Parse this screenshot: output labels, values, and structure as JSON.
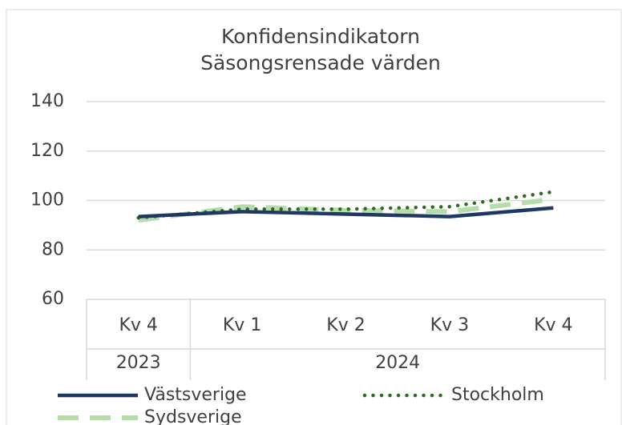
{
  "chart_data": {
    "type": "line",
    "title": "Konfidensindikatorn",
    "subtitle": "Säsongsrensade värden",
    "categories": [
      "Kv 4",
      "Kv 1",
      "Kv 2",
      "Kv 3",
      "Kv 4"
    ],
    "category_groups": [
      {
        "name": "2023",
        "count": 1
      },
      {
        "name": "2024",
        "count": 4
      }
    ],
    "series": [
      {
        "name": "Västsverige",
        "color": "#1f3864",
        "style": "solid",
        "values": [
          93.5,
          95.5,
          94.5,
          93.5,
          97
        ]
      },
      {
        "name": "Stockholm",
        "color": "#2e6b1f",
        "style": "dotted",
        "values": [
          93,
          96.5,
          96.5,
          97.5,
          103.5
        ]
      },
      {
        "name": "Sydsverige",
        "color": "#b5dcab",
        "style": "dashed",
        "values": [
          92,
          97.5,
          96,
          95.5,
          100.5
        ]
      }
    ],
    "ylim": [
      60,
      140
    ],
    "yticks": [
      60,
      80,
      100,
      120,
      140
    ],
    "grid": true,
    "legend": "bottom"
  }
}
